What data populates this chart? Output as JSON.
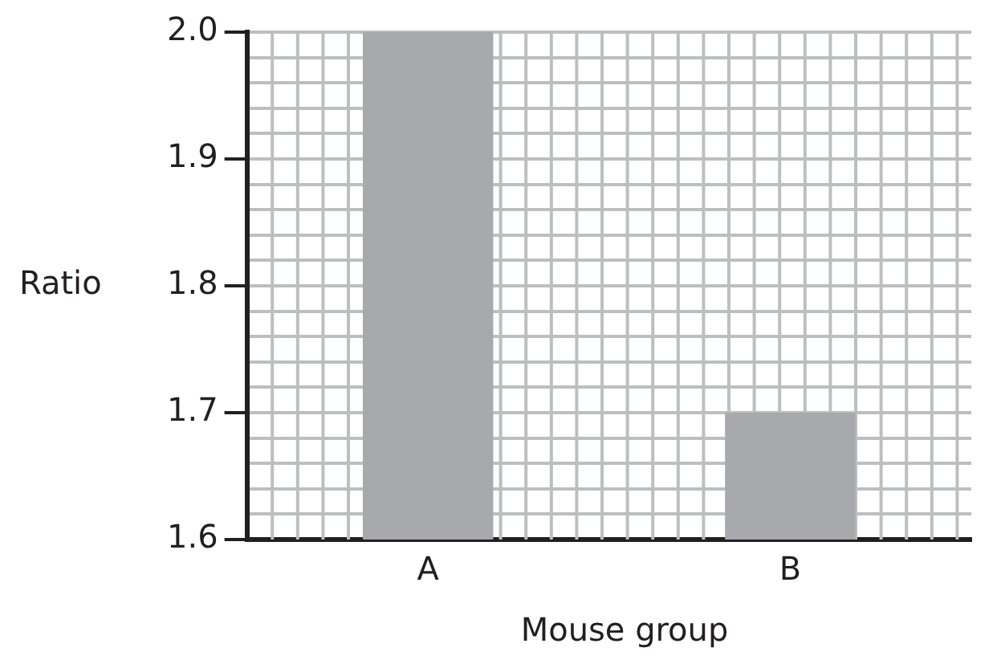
{
  "chart_data": {
    "type": "bar",
    "xlabel": "Mouse group",
    "ylabel": "Ratio",
    "categories": [
      "A",
      "B"
    ],
    "values": [
      2.0,
      1.7
    ],
    "color": "#a7a9ac",
    "ylim": [
      1.6,
      2.0
    ],
    "yticks": [
      {
        "value": 1.6,
        "label": "1.6"
      },
      {
        "value": 1.62,
        "label": null
      },
      {
        "value": 1.64,
        "label": null
      },
      {
        "value": 1.66,
        "label": null
      },
      {
        "value": 1.68,
        "label": null
      },
      {
        "value": 1.7,
        "label": "1.7"
      },
      {
        "value": 1.72,
        "label": null
      },
      {
        "value": 1.74,
        "label": null
      },
      {
        "value": 1.76,
        "label": null
      },
      {
        "value": 1.78,
        "label": null
      },
      {
        "value": 1.8,
        "label": "1.8"
      },
      {
        "value": 1.82,
        "label": null
      },
      {
        "value": 1.84,
        "label": null
      },
      {
        "value": 1.86,
        "label": null
      },
      {
        "value": 1.88,
        "label": null
      },
      {
        "value": 1.9,
        "label": "1.9"
      },
      {
        "value": 1.92,
        "label": null
      },
      {
        "value": 1.94,
        "label": null
      },
      {
        "value": 1.96,
        "label": null
      },
      {
        "value": 1.98,
        "label": null
      },
      {
        "value": 2.0,
        "label": "2.0"
      }
    ],
    "grid": true
  }
}
